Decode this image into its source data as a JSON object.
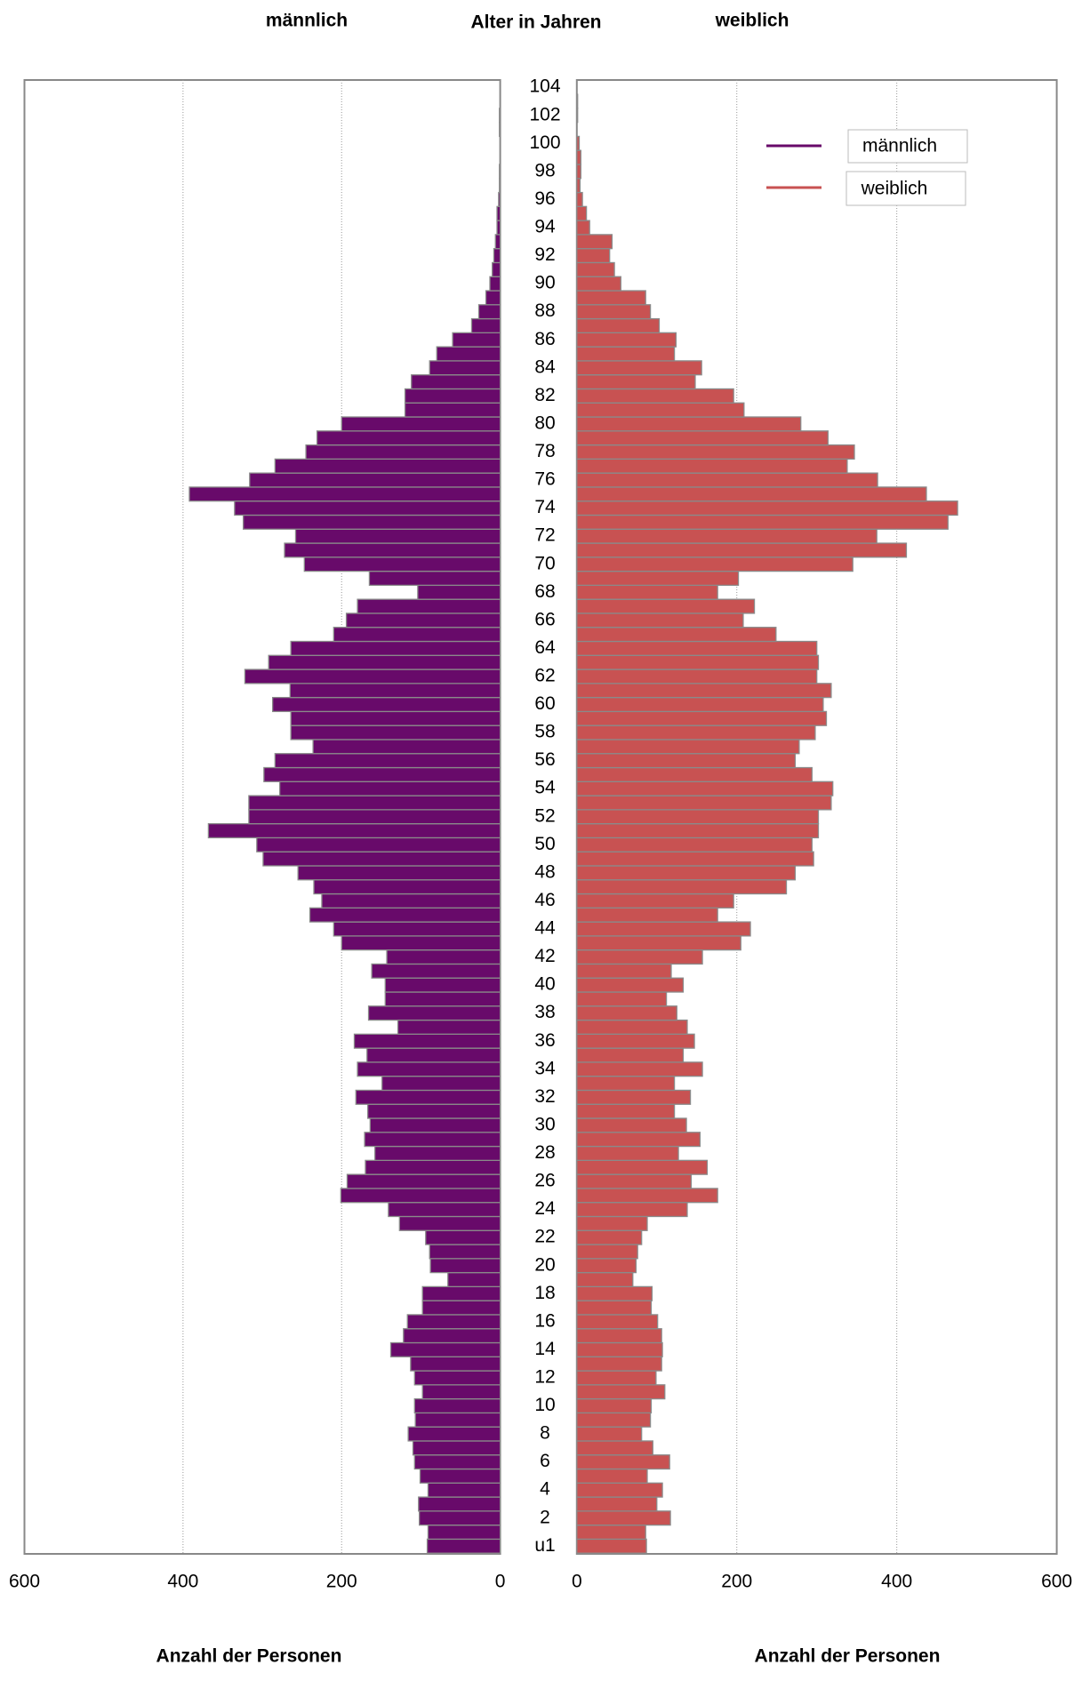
{
  "age_axis": {
    "label": "Alter in Jahren",
    "categories": [
      "u1",
      null,
      "2",
      null,
      "4",
      null,
      "6",
      null,
      "8",
      null,
      "10",
      null,
      "12",
      null,
      "14",
      null,
      "16",
      null,
      "18",
      null,
      "20",
      null,
      "22",
      null,
      "24",
      null,
      "26",
      null,
      "28",
      null,
      "30",
      null,
      "32",
      null,
      "34",
      null,
      "36",
      null,
      "38",
      null,
      "40",
      null,
      "42",
      null,
      "44",
      null,
      "46",
      null,
      "48",
      null,
      "50",
      null,
      "52",
      null,
      "54",
      null,
      "56",
      null,
      "58",
      null,
      "60",
      null,
      "62",
      null,
      "64",
      null,
      "66",
      null,
      "68",
      null,
      "70",
      null,
      "72",
      null,
      "74",
      null,
      "76",
      null,
      "78",
      null,
      "80",
      null,
      "82",
      null,
      "84",
      null,
      "86",
      null,
      "88",
      null,
      "90",
      null,
      "92",
      null,
      "94",
      null,
      "96",
      null,
      "98",
      null,
      "100",
      null,
      "102",
      null,
      "104"
    ]
  },
  "chart_data": [
    {
      "type": "bar",
      "title": "männlich",
      "name": "männlich",
      "xlabel": "Anzahl der Personen",
      "color": "#680a6a",
      "grid": true,
      "xlim": [
        600,
        0
      ],
      "xticks": [
        600,
        400,
        200,
        0
      ],
      "values": [
        92,
        91,
        102,
        103,
        91,
        101,
        108,
        110,
        116,
        107,
        108,
        98,
        108,
        113,
        138,
        122,
        117,
        98,
        98,
        66,
        88,
        89,
        94,
        127,
        141,
        201,
        193,
        170,
        158,
        171,
        164,
        167,
        182,
        149,
        180,
        168,
        184,
        129,
        166,
        145,
        145,
        162,
        143,
        200,
        210,
        240,
        225,
        235,
        255,
        299,
        307,
        368,
        317,
        317,
        278,
        298,
        284,
        236,
        264,
        264,
        287,
        265,
        322,
        292,
        264,
        210,
        194,
        180,
        104,
        165,
        247,
        272,
        258,
        324,
        335,
        392,
        316,
        284,
        245,
        231,
        200,
        120,
        120,
        112,
        89,
        80,
        60,
        36,
        27,
        18,
        13,
        10,
        8,
        6,
        4,
        4,
        2,
        1,
        1,
        0,
        0,
        1,
        1,
        0,
        0
      ]
    },
    {
      "type": "bar",
      "title": "weiblich",
      "name": "weiblich",
      "xlabel": "Anzahl der Personen",
      "color": "#c85252",
      "grid": true,
      "xlim": [
        0,
        600
      ],
      "xticks": [
        0,
        200,
        400,
        600
      ],
      "values": [
        87,
        86,
        117,
        100,
        107,
        88,
        116,
        95,
        81,
        92,
        93,
        110,
        99,
        106,
        107,
        106,
        101,
        93,
        94,
        70,
        74,
        76,
        81,
        88,
        138,
        176,
        143,
        163,
        127,
        154,
        137,
        122,
        142,
        122,
        157,
        133,
        147,
        138,
        125,
        112,
        133,
        118,
        157,
        205,
        217,
        176,
        196,
        262,
        273,
        296,
        294,
        302,
        302,
        318,
        320,
        294,
        273,
        278,
        298,
        312,
        308,
        318,
        300,
        302,
        300,
        249,
        208,
        222,
        176,
        202,
        345,
        412,
        375,
        464,
        476,
        437,
        376,
        338,
        347,
        314,
        280,
        209,
        196,
        148,
        156,
        122,
        124,
        103,
        92,
        86,
        55,
        47,
        41,
        44,
        16,
        12,
        7,
        4,
        5,
        5,
        3,
        0,
        1,
        1,
        0
      ]
    }
  ]
}
